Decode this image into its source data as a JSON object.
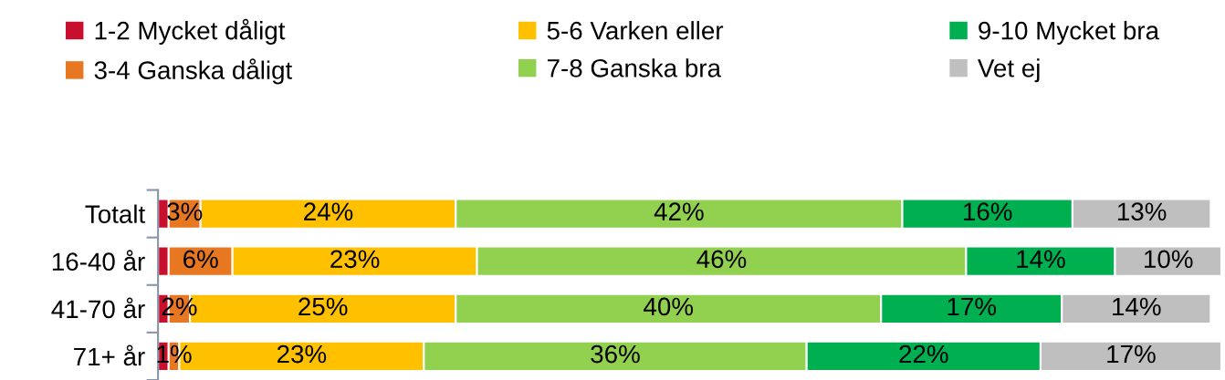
{
  "chart_data": {
    "type": "bar",
    "orientation": "horizontal",
    "stacked": true,
    "legend": "top",
    "grid": false,
    "tick_labels": "y",
    "categories": [
      "Totalt",
      "16-40 år",
      "41-70 år",
      "71+ år"
    ],
    "series": [
      {
        "name": "1-2 Mycket dåligt",
        "color": "#c8102e",
        "values": [
          1,
          1,
          1,
          1
        ],
        "value_labels": [
          null,
          null,
          null,
          null
        ]
      },
      {
        "name": "3-4 Ganska dåligt",
        "color": "#e87722",
        "values": [
          3,
          6,
          2,
          1
        ],
        "value_labels": [
          "3%",
          "6%",
          "2%",
          "1%"
        ]
      },
      {
        "name": "5-6 Varken eller",
        "color": "#ffc000",
        "values": [
          24,
          23,
          25,
          23
        ],
        "value_labels": [
          "24%",
          "23%",
          "25%",
          "23%"
        ]
      },
      {
        "name": "7-8 Ganska bra",
        "color": "#92d050",
        "values": [
          42,
          46,
          40,
          36
        ],
        "value_labels": [
          "42%",
          "46%",
          "40%",
          "36%"
        ]
      },
      {
        "name": "9-10 Mycket bra",
        "color": "#00b050",
        "values": [
          16,
          14,
          17,
          22
        ],
        "value_labels": [
          "16%",
          "14%",
          "17%",
          "22%"
        ]
      },
      {
        "name": "Vet ej",
        "color": "#bfbfbf",
        "values": [
          13,
          10,
          14,
          17
        ],
        "value_labels": [
          "13%",
          "10%",
          "14%",
          "17%"
        ]
      }
    ]
  }
}
